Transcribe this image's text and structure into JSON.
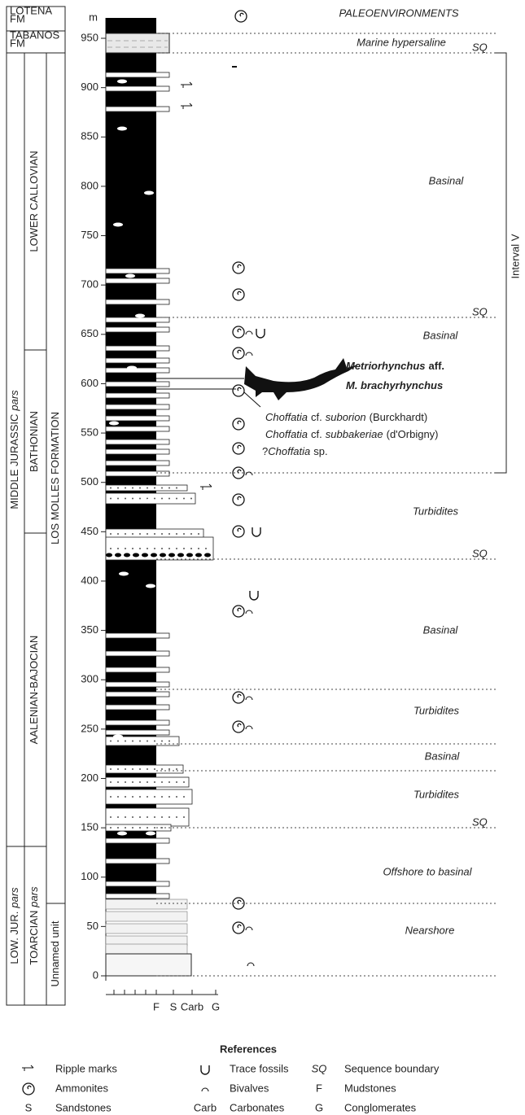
{
  "header": {
    "title": "PALEOENVIRONMENTS"
  },
  "depth_axis": {
    "unit": "m",
    "ticks": [
      0,
      50,
      100,
      150,
      200,
      250,
      300,
      350,
      400,
      450,
      500,
      550,
      600,
      650,
      700,
      750,
      800,
      850,
      900,
      950
    ]
  },
  "lithology_axis": {
    "labels": [
      "F",
      "S",
      "Carb",
      "G"
    ]
  },
  "units": {
    "lotena": [
      "LOTENA",
      "FM"
    ],
    "tabanos": [
      "TABANOS",
      "FM"
    ],
    "system": [
      {
        "name": "MIDDLE JURASSIC",
        "qualifier": "pars"
      },
      {
        "name": "LOW. JUR.",
        "qualifier": "pars"
      }
    ],
    "stages": [
      {
        "name": "LOWER CALLOVIAN"
      },
      {
        "name": "BATHONIAN"
      },
      {
        "name": "AALENIAN-BAJOCIAN"
      },
      {
        "name": "TOARCIAN",
        "qualifier": "pars"
      }
    ],
    "formations": [
      "LOS MOLLES FORMATION",
      "Unnamed unit"
    ]
  },
  "environments": [
    "Marine hypersaline",
    "Basinal",
    "Basinal",
    "Turbidites",
    "Basinal",
    "Turbidites",
    "Basinal",
    "Turbidites",
    "Offshore to basinal",
    "Nearshore"
  ],
  "sequence_boundaries": [
    "SQ",
    "SQ",
    "SQ",
    "SQ"
  ],
  "interval": "Interval V",
  "fossil": {
    "genus": "Metriorhynchus",
    "modifier": "aff.",
    "species": "M. brachyrhynchus"
  },
  "ammonites": [
    {
      "genus": "Choffatia",
      "modifier": "cf.",
      "species": "suborion",
      "author": "(Burckhardt)"
    },
    {
      "genus": "Choffatia",
      "modifier": "cf.",
      "species": "subbakeriae",
      "author": "(d'Orbigny)"
    },
    {
      "prefix": "?",
      "genus": "Choffatia",
      "suffix": "sp."
    }
  ],
  "legend": {
    "title": "References",
    "items": [
      {
        "label": "Ripple marks"
      },
      {
        "label": "Trace fossils"
      },
      {
        "code": "SQ",
        "label": "Sequence boundary"
      },
      {
        "label": "Ammonites"
      },
      {
        "label": "Bivalves"
      },
      {
        "code": "F",
        "label": "Mudstones"
      },
      {
        "code": "S",
        "label": "Sandstones"
      },
      {
        "code": "Carb",
        "label": "Carbonates"
      },
      {
        "code": "G",
        "label": "Conglomerates"
      }
    ]
  }
}
